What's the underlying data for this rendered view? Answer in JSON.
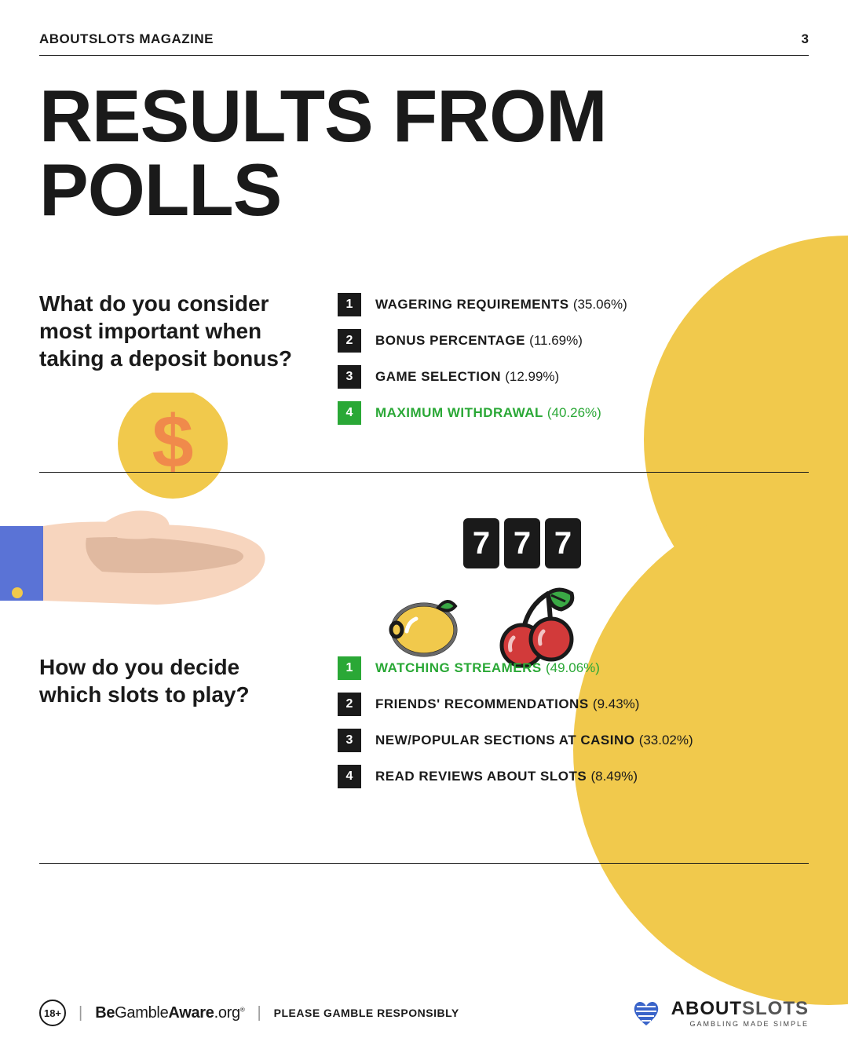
{
  "header": {
    "magazine": "ABOUTSLOTS MAGAZINE",
    "page": "3"
  },
  "title": "RESULTS FROM POLLS",
  "colors": {
    "text": "#1a1a1a",
    "highlight": "#2aa836",
    "box_default": "#1a1a1a",
    "box_highlight": "#2aa836",
    "blob": "#f1c94c",
    "coin": "#f1c94c",
    "dollar": "#f08a4b",
    "sleeve": "#5a73d6",
    "hand": "#f7d5be",
    "hand_shadow": "#e0b9a0"
  },
  "poll1": {
    "question": "What do you consider most important when taking a deposit bonus?",
    "items": [
      {
        "n": "1",
        "label": "WAGERING REQUIREMENTS",
        "pct": "(35.06%)",
        "highlight": false
      },
      {
        "n": "2",
        "label": "BONUS PERCENTAGE",
        "pct": "(11.69%)",
        "highlight": false
      },
      {
        "n": "3",
        "label": "GAME SELECTION",
        "pct": "(12.99%)",
        "highlight": false
      },
      {
        "n": "4",
        "label": "MAXIMUM WITHDRAWAL",
        "pct": "(40.26%)",
        "highlight": true
      }
    ]
  },
  "poll2": {
    "question": "How do you decide which slots to play?",
    "items": [
      {
        "n": "1",
        "label": "WATCHING STREAMERS",
        "pct": "(49.06%)",
        "highlight": true
      },
      {
        "n": "2",
        "label": "FRIENDS' RECOMMENDATIONS",
        "pct": "(9.43%)",
        "highlight": false
      },
      {
        "n": "3",
        "label": "NEW/POPULAR SECTIONS AT CASINO",
        "pct": "(33.02%)",
        "highlight": false
      },
      {
        "n": "4",
        "label": "READ REVIEWS ABOUT SLOTS",
        "pct": "(8.49%)",
        "highlight": false
      }
    ]
  },
  "reels": [
    "7",
    "7",
    "7"
  ],
  "footer": {
    "age": "18+",
    "bga_bold1": "Be",
    "bga_light": "Gamble",
    "bga_bold2": "Aware",
    "bga_org": ".org",
    "bga_reg": "®",
    "responsibly": "PLEASE GAMBLE RESPONSIBLY",
    "logo_main1": "ABOUT",
    "logo_main2": "SLOTS",
    "logo_tag": "GAMBLING MADE SIMPLE"
  }
}
